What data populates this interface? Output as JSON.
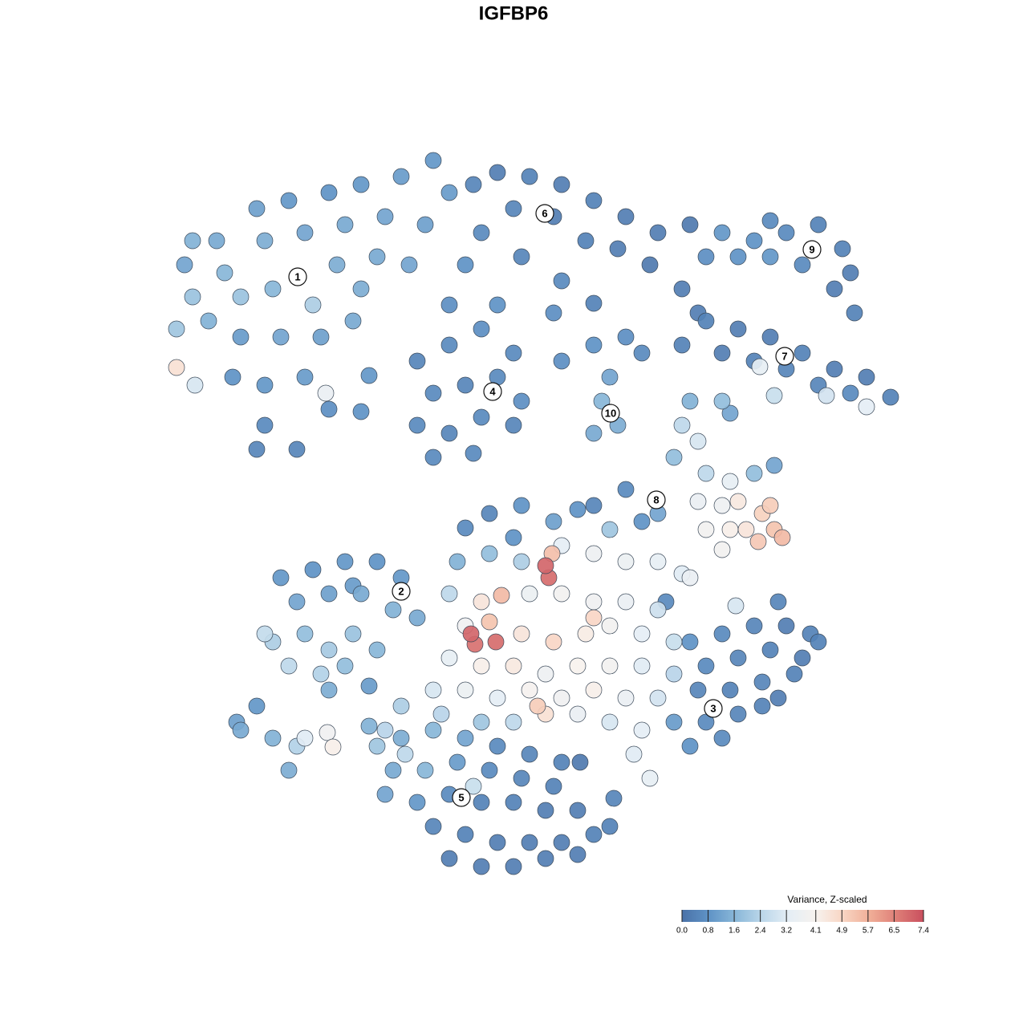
{
  "chart_data": {
    "type": "scatter",
    "title": "IGFBP6",
    "xlim": [
      0,
      128
    ],
    "ylim": [
      128,
      0
    ],
    "colorbar": {
      "title": "Variance, Z-scaled",
      "clim": [
        0,
        7.4
      ],
      "colormap": [
        "#4a72a8",
        "#5f93c6",
        "#8ab8d9",
        "#bcd7ea",
        "#e5eef5",
        "#f7f2ee",
        "#f8d5c3",
        "#f0ae97",
        "#de7e77",
        "#c94f5e"
      ],
      "ticks": [
        {
          "value": 0,
          "label": "0.0"
        },
        0.8,
        1.6,
        2.4,
        3.2,
        4.1,
        4.9,
        5.7,
        6.5,
        7.4
      ]
    },
    "annotations": [
      {
        "text": "1",
        "x": 37.1,
        "y": 34.5
      },
      {
        "text": "2",
        "x": 50,
        "y": 73.7
      },
      {
        "text": "3",
        "x": 88.9,
        "y": 88.3
      },
      {
        "text": "4",
        "x": 61.4,
        "y": 48.8
      },
      {
        "text": "5",
        "x": 57.5,
        "y": 99.4
      },
      {
        "text": "6",
        "x": 67.9,
        "y": 26.6
      },
      {
        "text": "7",
        "x": 97.8,
        "y": 44.4
      },
      {
        "text": "8",
        "x": 81.8,
        "y": 62.3
      },
      {
        "text": "9",
        "x": 101.2,
        "y": 31.1
      },
      {
        "text": "10",
        "x": 76.1,
        "y": 51.5
      }
    ],
    "series": [
      {
        "x": [
          23,
          27,
          32,
          36,
          41,
          45,
          50,
          54,
          56,
          53,
          48,
          43,
          38,
          33,
          28,
          24,
          22,
          26,
          30,
          34,
          39,
          42,
          47,
          51,
          30,
          35,
          40,
          44,
          29,
          33,
          38,
          41,
          33,
          37,
          32,
          22,
          24.3,
          40.6,
          24,
          45
        ],
        "y": [
          33,
          30,
          26,
          25,
          24,
          23,
          22,
          20,
          24,
          28,
          27,
          28,
          29,
          30,
          34,
          37,
          41,
          40,
          37,
          36,
          38,
          33,
          32,
          33,
          42,
          42,
          42,
          40,
          47,
          48,
          47,
          51,
          53,
          56,
          56,
          45.8,
          48,
          49,
          30,
          36
        ],
        "values": [
          1.2,
          1.3,
          1.1,
          0.9,
          0.8,
          0.9,
          1.0,
          0.9,
          1.0,
          1.1,
          1.2,
          1.3,
          1.2,
          1.4,
          1.6,
          1.9,
          2.0,
          1.5,
          1.9,
          1.6,
          2.2,
          1.4,
          1.3,
          1.2,
          1.0,
          1.2,
          1.1,
          1.3,
          0.8,
          0.9,
          1.0,
          0.7,
          0.6,
          0.5,
          0.5,
          4.6,
          3.0,
          3.5,
          1.5,
          1.4
        ]
      },
      {
        "x": [
          59,
          62,
          66,
          70,
          74,
          78,
          82,
          64,
          69,
          73,
          77,
          81,
          60,
          65,
          70,
          69,
          58,
          56,
          62,
          85,
          87,
          74,
          86
        ],
        "y": [
          23,
          21.5,
          22,
          23,
          25,
          27,
          29,
          26,
          27,
          30,
          31,
          33,
          29,
          32,
          35,
          39,
          33,
          38,
          38,
          36,
          39,
          37.8,
          28
        ],
        "values": [
          0.5,
          0.3,
          0.4,
          0.3,
          0.4,
          0.3,
          0.3,
          0.5,
          0.3,
          0.4,
          0.3,
          0.2,
          0.6,
          0.5,
          0.6,
          0.7,
          0.8,
          0.7,
          0.8,
          0.3,
          0.3,
          0.4,
          0.2
        ]
      },
      {
        "x": [
          52,
          56,
          60,
          64,
          54,
          58,
          62,
          65,
          52,
          56,
          60,
          64,
          54,
          59,
          45,
          46
        ],
        "y": [
          45,
          43,
          41,
          44,
          49,
          48,
          47,
          50,
          53,
          54,
          52,
          53,
          57,
          56.5,
          51.3,
          46.8
        ],
        "values": [
          0.5,
          0.6,
          0.7,
          0.6,
          0.6,
          0.5,
          0.6,
          0.7,
          0.6,
          0.5,
          0.6,
          0.5,
          0.6,
          0.6,
          0.8,
          0.9
        ]
      },
      {
        "x": [
          90,
          94,
          98,
          102,
          105,
          106,
          88,
          92,
          96,
          100,
          104,
          106.5,
          96
        ],
        "y": [
          29,
          30,
          29,
          28,
          31,
          34,
          32,
          32,
          32,
          33,
          36,
          39,
          27.5
        ],
        "values": [
          0.9,
          0.8,
          0.6,
          0.4,
          0.4,
          0.3,
          0.7,
          0.8,
          0.9,
          0.6,
          0.3,
          0.4,
          0.6
        ]
      },
      {
        "x": [
          88,
          92,
          96,
          100,
          104,
          108,
          111,
          85,
          90,
          94,
          102,
          106,
          98,
          94.7,
          103,
          108,
          96.5
        ],
        "y": [
          40,
          41,
          42,
          44,
          46,
          47,
          49.5,
          43,
          44,
          45,
          48,
          49,
          46,
          45.7,
          49.3,
          50.7,
          49.3
        ],
        "values": [
          0.4,
          0.3,
          0.3,
          0.4,
          0.3,
          0.3,
          0.4,
          0.4,
          0.3,
          0.4,
          0.5,
          0.6,
          0.5,
          3.4,
          2.9,
          3.3,
          2.7
        ]
      },
      {
        "x": [
          70,
          74,
          78,
          76,
          75,
          77,
          74,
          80
        ],
        "y": [
          45,
          43,
          42,
          47,
          50,
          53,
          54,
          44
        ],
        "values": [
          0.7,
          0.8,
          0.7,
          1.2,
          1.6,
          1.4,
          1.3,
          0.6
        ]
      },
      {
        "x": [
          86,
          90,
          85,
          87,
          84,
          88,
          91,
          94,
          96.5,
          87,
          90,
          88,
          91,
          90,
          93,
          95,
          96.5,
          94.5,
          97.5,
          96,
          92,
          82,
          78,
          74,
          80,
          91
        ],
        "y": [
          50,
          50,
          53,
          55,
          57,
          59,
          60,
          59,
          58,
          62.5,
          63,
          66,
          66,
          68.5,
          66,
          64,
          66,
          67.5,
          67,
          63,
          62.5,
          64,
          61,
          63,
          65,
          51.5
        ],
        "values": [
          1.5,
          1.8,
          2.5,
          3.0,
          1.8,
          2.5,
          3.4,
          1.8,
          1.2,
          3.5,
          3.7,
          3.9,
          4.2,
          3.9,
          4.5,
          5.0,
          5.3,
          5.2,
          5.5,
          5.1,
          4.4,
          1.2,
          0.6,
          0.5,
          0.8,
          1.2
        ]
      },
      {
        "x": [
          35,
          39,
          43,
          47,
          50,
          37,
          41,
          45,
          49,
          52,
          34,
          38,
          41,
          44,
          36,
          40,
          43,
          47,
          33,
          41,
          46,
          44
        ],
        "y": [
          72,
          71,
          70,
          70,
          72,
          75,
          74,
          74,
          76,
          77,
          80,
          79,
          81,
          79,
          83,
          84,
          83,
          81,
          79,
          86,
          85.5,
          73
        ],
        "values": [
          0.9,
          0.8,
          0.9,
          0.8,
          0.9,
          1.2,
          1.1,
          1.3,
          1.5,
          1.3,
          2.2,
          1.8,
          2.1,
          1.9,
          2.5,
          2.3,
          1.8,
          1.6,
          2.6,
          1.4,
          1.0,
          1.0
        ]
      },
      {
        "x": [
          30,
          32,
          34,
          37,
          38,
          40.8,
          41.5,
          36,
          29.5
        ],
        "y": [
          91,
          88,
          92,
          93,
          92,
          91.3,
          93.1,
          96,
          90
        ],
        "values": [
          1.3,
          0.9,
          1.5,
          2.3,
          3.2,
          3.8,
          4.2,
          1.4,
          1.1
        ]
      },
      {
        "x": [
          57,
          61,
          65,
          70,
          74,
          78,
          82,
          85,
          56,
          60,
          62.5,
          66,
          70,
          74,
          78,
          82,
          58,
          61,
          58.7,
          59.2,
          61.8,
          65,
          69,
          73,
          76,
          80,
          84,
          56,
          60,
          64,
          68,
          72,
          76,
          80,
          84,
          54,
          58,
          62,
          66,
          70,
          74,
          78,
          82,
          50,
          55,
          60,
          64,
          68,
          72,
          76,
          80,
          79,
          81,
          68,
          68.4,
          68.8,
          74,
          67,
          48,
          47,
          69,
          72,
          76,
          64,
          61,
          65,
          58,
          86,
          83,
          91.7,
          97
        ],
        "y": [
          70,
          69,
          70,
          68,
          69,
          70,
          70,
          71.5,
          74,
          75,
          74.2,
          74,
          74,
          75,
          75,
          76,
          78,
          77.5,
          79,
          80.3,
          80,
          79,
          80,
          79,
          78,
          79,
          80,
          82,
          83,
          83,
          84,
          83,
          83,
          83,
          84,
          86,
          86,
          87,
          86,
          87,
          86,
          87,
          87,
          88,
          89,
          90,
          90,
          89,
          89,
          90,
          91,
          94,
          97,
          70.5,
          72,
          69,
          77,
          88,
          91,
          93,
          65,
          63.5,
          66,
          67,
          64,
          63,
          65.8,
          72,
          75,
          75.5,
          75
        ],
        "values": [
          1.5,
          1.8,
          2.2,
          3.3,
          3.7,
          3.6,
          3.4,
          3.2,
          2.5,
          4.5,
          5.5,
          3.6,
          3.9,
          3.8,
          3.5,
          2.8,
          3.8,
          5.3,
          7.0,
          6.8,
          6.9,
          4.5,
          4.9,
          4.3,
          3.9,
          3.3,
          2.7,
          3.4,
          4.2,
          4.4,
          3.7,
          4.1,
          3.9,
          3.2,
          2.4,
          3.0,
          3.6,
          3.3,
          4.0,
          3.8,
          4.2,
          3.5,
          2.9,
          2.2,
          2.4,
          2.0,
          2.5,
          4.6,
          3.5,
          3.0,
          3.3,
          3.2,
          3.4,
          7.0,
          6.9,
          5.4,
          4.9,
          5.1,
          2.4,
          2.0,
          1.1,
          0.8,
          2.0,
          0.8,
          0.5,
          0.8,
          0.6,
          3.5,
          0.6,
          3.0,
          0.5
        ]
      },
      {
        "x": [
          86,
          90,
          94,
          98,
          101,
          88,
          92,
          96,
          100,
          87,
          91,
          95,
          99,
          88,
          92,
          95,
          86,
          90,
          102,
          97,
          84
        ],
        "y": [
          80,
          79,
          78,
          78,
          79,
          83,
          82,
          81,
          82,
          86,
          86,
          85,
          84,
          90,
          89,
          88,
          93,
          92,
          80,
          87,
          90
        ],
        "values": [
          0.8,
          0.6,
          0.5,
          0.3,
          0.4,
          0.6,
          0.5,
          0.4,
          0.3,
          0.5,
          0.4,
          0.5,
          0.4,
          0.6,
          0.5,
          0.4,
          0.8,
          0.6,
          0.4,
          0.3,
          1.0
        ]
      },
      {
        "x": [
          50,
          54,
          58,
          62,
          66,
          70,
          49,
          53,
          57,
          61,
          65,
          69,
          48,
          52,
          56,
          60,
          64,
          68,
          72,
          76,
          54,
          58,
          62,
          66,
          70,
          74,
          56,
          60,
          64,
          68,
          72,
          50.5,
          59,
          46,
          72.3,
          76.5
        ],
        "y": [
          92,
          91,
          92,
          93,
          94,
          95,
          96,
          96,
          95,
          96,
          97,
          98,
          99,
          100,
          99,
          100,
          100,
          101,
          101,
          103,
          103,
          104,
          105,
          105,
          105,
          104,
          107,
          108,
          108,
          107,
          106.5,
          94,
          98,
          90.5,
          95,
          99.5
        ],
        "values": [
          1.4,
          1.6,
          1.2,
          0.6,
          0.5,
          0.4,
          1.3,
          1.6,
          1.0,
          0.6,
          0.5,
          0.4,
          1.2,
          0.9,
          0.6,
          0.4,
          0.4,
          0.3,
          0.3,
          0.4,
          0.5,
          0.4,
          0.3,
          0.3,
          0.3,
          0.4,
          0.3,
          0.3,
          0.3,
          0.3,
          0.3,
          2.5,
          2.7,
          1.5,
          0.2,
          0.5
        ]
      }
    ]
  }
}
